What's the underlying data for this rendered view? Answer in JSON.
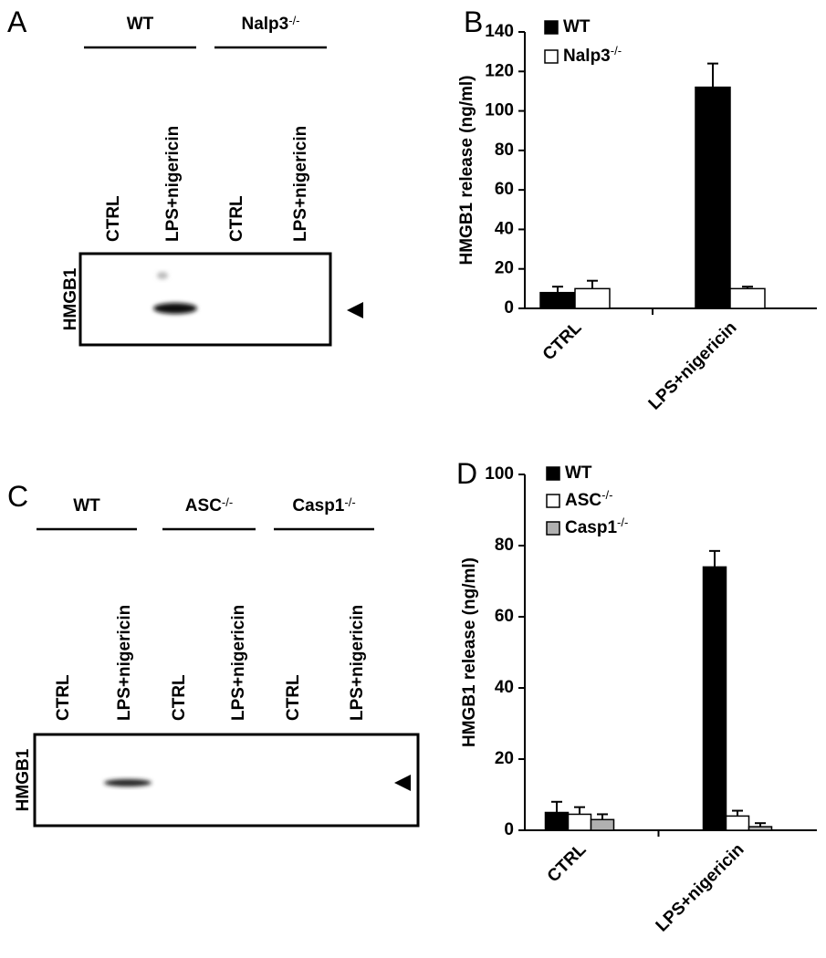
{
  "blots": [
    {
      "panel_label": "A",
      "groups": [
        "WT",
        "Nalp3-/-"
      ],
      "lanes": [
        "CTRL",
        "LPS+nigericin",
        "CTRL",
        "LPS+nigericin"
      ],
      "protein": "HMGB1"
    },
    {
      "panel_label": "C",
      "groups": [
        "WT",
        "ASC-/-",
        "Casp1-/-"
      ],
      "lanes": [
        "CTRL",
        "LPS+nigericin",
        "CTRL",
        "LPS+nigericin",
        "CTRL",
        "LPS+nigericin"
      ],
      "protein": "HMGB1"
    }
  ],
  "chart_data": [
    {
      "type": "bar",
      "panel_label": "B",
      "y_label": "HMGB1 release (ng/ml)",
      "categories": [
        "CTRL",
        "LPS+nigericin"
      ],
      "series": [
        {
          "name": "WT",
          "color": "#000000",
          "values": [
            8,
            112
          ],
          "errors": [
            3,
            12
          ]
        },
        {
          "name": "Nalp3-/-",
          "color": "#ffffff",
          "values": [
            10,
            10
          ],
          "errors": [
            4,
            1
          ]
        }
      ],
      "ylim": [
        0,
        140
      ],
      "yticks": [
        0,
        20,
        40,
        60,
        80,
        100,
        120,
        140
      ],
      "legend": "upper left"
    },
    {
      "type": "bar",
      "panel_label": "D",
      "y_label": "HMGB1 release (ng/ml)",
      "categories": [
        "CTRL",
        "LPS+nigericin"
      ],
      "series": [
        {
          "name": "WT",
          "color": "#000000",
          "values": [
            5,
            74
          ],
          "errors": [
            3,
            4.5
          ]
        },
        {
          "name": "ASC-/-",
          "color": "#ffffff",
          "values": [
            4.5,
            4
          ],
          "errors": [
            2,
            1.5
          ]
        },
        {
          "name": "Casp1-/-",
          "color": "#b0b0b0",
          "values": [
            3,
            1
          ],
          "errors": [
            1.5,
            1
          ]
        }
      ],
      "ylim": [
        0,
        100
      ],
      "yticks": [
        0,
        20,
        40,
        60,
        80,
        100
      ],
      "legend": "upper left"
    }
  ]
}
